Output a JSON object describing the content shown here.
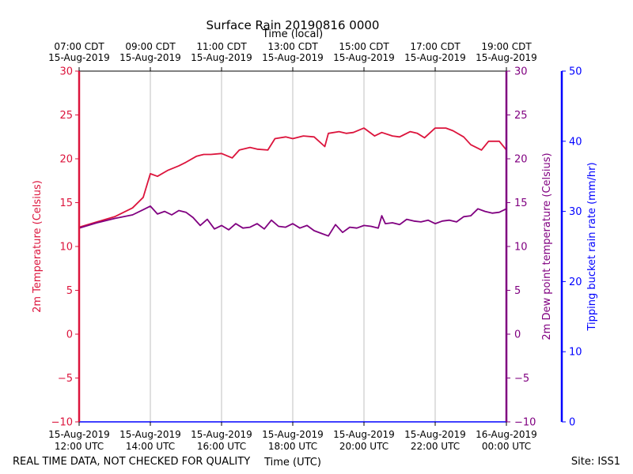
{
  "chart_data": {
    "type": "line",
    "title": "Surface Rain 20190816 0000",
    "top_axis_label": "Time (local)",
    "bottom_axis_label": "Time (UTC)",
    "footer_left": "REAL TIME DATA, NOT CHECKED FOR QUALITY",
    "footer_right": "Site: ISS1",
    "x_range_hours_utc": [
      12,
      24
    ],
    "bottom_ticks": [
      {
        "hour": 12,
        "line1": "15-Aug-2019",
        "line2": "12:00 UTC"
      },
      {
        "hour": 14,
        "line1": "15-Aug-2019",
        "line2": "14:00 UTC"
      },
      {
        "hour": 16,
        "line1": "15-Aug-2019",
        "line2": "16:00 UTC"
      },
      {
        "hour": 18,
        "line1": "15-Aug-2019",
        "line2": "18:00 UTC"
      },
      {
        "hour": 20,
        "line1": "15-Aug-2019",
        "line2": "20:00 UTC"
      },
      {
        "hour": 22,
        "line1": "15-Aug-2019",
        "line2": "22:00 UTC"
      },
      {
        "hour": 24,
        "line1": "16-Aug-2019",
        "line2": "00:00 UTC"
      }
    ],
    "top_ticks": [
      {
        "hour": 12,
        "line1": "07:00 CDT",
        "line2": "15-Aug-2019"
      },
      {
        "hour": 14,
        "line1": "09:00 CDT",
        "line2": "15-Aug-2019"
      },
      {
        "hour": 16,
        "line1": "11:00 CDT",
        "line2": "15-Aug-2019"
      },
      {
        "hour": 18,
        "line1": "13:00 CDT",
        "line2": "15-Aug-2019"
      },
      {
        "hour": 20,
        "line1": "15:00 CDT",
        "line2": "15-Aug-2019"
      },
      {
        "hour": 22,
        "line1": "17:00 CDT",
        "line2": "15-Aug-2019"
      },
      {
        "hour": 24,
        "line1": "19:00 CDT",
        "line2": "15-Aug-2019"
      }
    ],
    "axes": {
      "temperature": {
        "label": "2m Temperature (Celsius)",
        "ylim": [
          -10,
          30
        ],
        "ticks": [
          "−10",
          "−5",
          "0",
          "5",
          "10",
          "15",
          "20",
          "25",
          "30"
        ],
        "color": "#dc143c"
      },
      "dewpoint": {
        "label": "2m Dew point temperature (Celsius)",
        "ylim": [
          -10,
          30
        ],
        "ticks": [
          "−10",
          "−5",
          "0",
          "5",
          "10",
          "15",
          "20",
          "25",
          "30"
        ],
        "color": "#800080"
      },
      "rain": {
        "label": "Tipping bucket rain rate (mm/hr)",
        "ylim": [
          0,
          50
        ],
        "ticks": [
          "0",
          "10",
          "20",
          "30",
          "40",
          "50"
        ],
        "color": "#0000ff"
      }
    },
    "series": [
      {
        "key": "temperature",
        "color": "#dc143c",
        "x": [
          12.0,
          12.5,
          13.0,
          13.5,
          13.8,
          14.0,
          14.2,
          14.5,
          14.8,
          15.0,
          15.3,
          15.5,
          15.7,
          16.0,
          16.3,
          16.5,
          16.8,
          17.0,
          17.3,
          17.5,
          17.8,
          18.0,
          18.3,
          18.6,
          18.9,
          19.0,
          19.3,
          19.5,
          19.7,
          20.0,
          20.3,
          20.5,
          20.8,
          21.0,
          21.3,
          21.5,
          21.7,
          22.0,
          22.3,
          22.5,
          22.8,
          23.0,
          23.3,
          23.5,
          23.8,
          24.0
        ],
        "values": [
          12.2,
          12.8,
          13.4,
          14.4,
          15.6,
          18.3,
          18.0,
          18.7,
          19.2,
          19.6,
          20.3,
          20.5,
          20.5,
          20.6,
          20.1,
          21.0,
          21.3,
          21.1,
          21.0,
          22.3,
          22.5,
          22.3,
          22.6,
          22.5,
          21.4,
          22.9,
          23.1,
          22.9,
          23.0,
          23.5,
          22.6,
          23.0,
          22.6,
          22.5,
          23.1,
          22.9,
          22.4,
          23.5,
          23.5,
          23.2,
          22.5,
          21.6,
          21.0,
          22.0,
          22.0,
          21.0
        ]
      },
      {
        "key": "dewpoint",
        "color": "#800080",
        "x": [
          12.0,
          12.5,
          13.0,
          13.5,
          13.8,
          14.0,
          14.2,
          14.4,
          14.6,
          14.8,
          15.0,
          15.2,
          15.4,
          15.6,
          15.8,
          16.0,
          16.2,
          16.4,
          16.6,
          16.8,
          17.0,
          17.2,
          17.4,
          17.6,
          17.8,
          18.0,
          18.2,
          18.4,
          18.6,
          18.8,
          19.0,
          19.2,
          19.4,
          19.6,
          19.8,
          20.0,
          20.2,
          20.4,
          20.5,
          20.6,
          20.8,
          21.0,
          21.2,
          21.4,
          21.6,
          21.8,
          22.0,
          22.2,
          22.4,
          22.6,
          22.8,
          23.0,
          23.2,
          23.4,
          23.6,
          23.8,
          24.0
        ],
        "values": [
          12.1,
          12.7,
          13.2,
          13.6,
          14.2,
          14.6,
          13.7,
          14.0,
          13.6,
          14.1,
          13.9,
          13.3,
          12.4,
          13.1,
          12.0,
          12.4,
          11.9,
          12.6,
          12.1,
          12.2,
          12.6,
          12.0,
          13.0,
          12.3,
          12.2,
          12.6,
          12.1,
          12.4,
          11.8,
          11.5,
          11.2,
          12.5,
          11.6,
          12.2,
          12.1,
          12.4,
          12.3,
          12.1,
          13.5,
          12.6,
          12.7,
          12.5,
          13.1,
          12.9,
          12.8,
          13.0,
          12.6,
          12.9,
          13.0,
          12.8,
          13.4,
          13.5,
          14.3,
          14.0,
          13.8,
          13.9,
          14.3
        ]
      }
    ],
    "gridlines": true,
    "legend": "none"
  }
}
